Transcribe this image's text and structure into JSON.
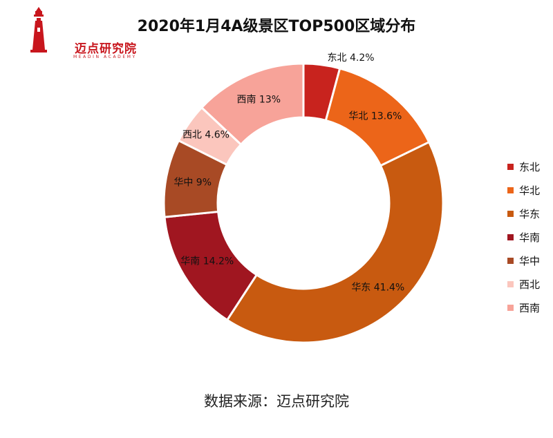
{
  "logo": {
    "name": "迈点研究院",
    "sub": "MEADIN ACADEMY",
    "color": "#c8161d"
  },
  "source": "数据来源：迈点研究院",
  "chart_data": {
    "type": "pie",
    "title": "2020年1月4A级景区TOP500区域分布",
    "donut": true,
    "legend_position": "right",
    "slices": [
      {
        "name": "东北",
        "value": 4.2,
        "label": "东北 4.2%",
        "color": "#c8231e"
      },
      {
        "name": "华北",
        "value": 13.6,
        "label": "华北 13.6%",
        "color": "#ec6519"
      },
      {
        "name": "华东",
        "value": 41.4,
        "label": "华东 41.4%",
        "color": "#c85a10"
      },
      {
        "name": "华南",
        "value": 14.2,
        "label": "华南 14.2%",
        "color": "#a01620"
      },
      {
        "name": "华中",
        "value": 9,
        "label": "华中 9%",
        "color": "#a84a25"
      },
      {
        "name": "西北",
        "value": 4.6,
        "label": "西北 4.6%",
        "color": "#fbc6bd"
      },
      {
        "name": "西南",
        "value": 13,
        "label": "西南 13%",
        "color": "#f7a399"
      }
    ]
  }
}
